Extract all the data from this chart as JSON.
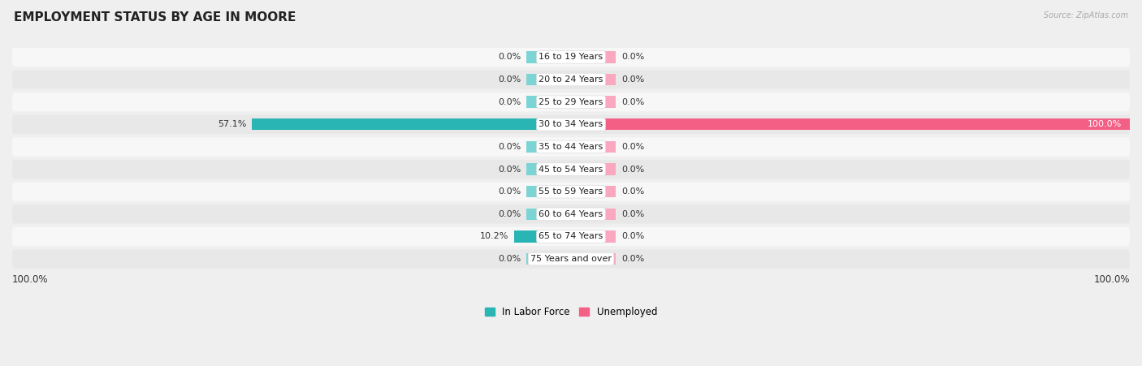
{
  "title": "EMPLOYMENT STATUS BY AGE IN MOORE",
  "source": "Source: ZipAtlas.com",
  "categories": [
    "16 to 19 Years",
    "20 to 24 Years",
    "25 to 29 Years",
    "30 to 34 Years",
    "35 to 44 Years",
    "45 to 54 Years",
    "55 to 59 Years",
    "60 to 64 Years",
    "65 to 74 Years",
    "75 Years and over"
  ],
  "labor_force": [
    0.0,
    0.0,
    0.0,
    57.1,
    0.0,
    0.0,
    0.0,
    0.0,
    10.2,
    0.0
  ],
  "unemployed": [
    0.0,
    0.0,
    0.0,
    100.0,
    0.0,
    0.0,
    0.0,
    0.0,
    0.0,
    0.0
  ],
  "labor_force_color_zero": "#7dd4d4",
  "unemployed_color_zero": "#f9a8c0",
  "labor_force_color_active": "#2ab5b5",
  "unemployed_color_active": "#f45f85",
  "bg_color": "#efefef",
  "row_bg_light": "#f7f7f7",
  "row_bg_dark": "#e8e8e8",
  "xlim": 100,
  "min_bar": 8,
  "bar_height": 0.52,
  "legend_labor": "In Labor Force",
  "legend_unemployed": "Unemployed",
  "title_fontsize": 11,
  "label_fontsize": 8,
  "category_fontsize": 8,
  "source_fontsize": 7
}
